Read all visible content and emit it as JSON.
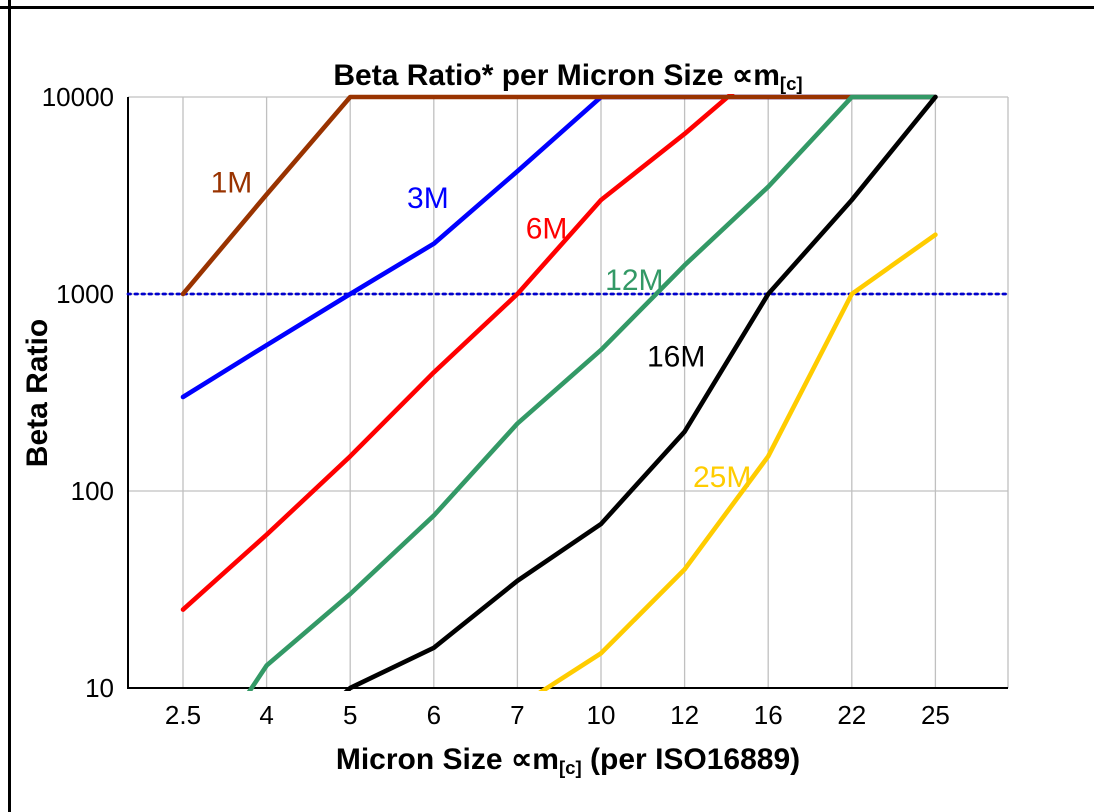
{
  "page": {
    "background": "#FFFFFF",
    "frame_border_color": "#000000"
  },
  "chart_data": {
    "type": "line",
    "title": "Beta Ratio* per Micron Size ∝m[c]",
    "title_parts": {
      "pre": "Beta Ratio* per Micron Size ∝m",
      "sub": "[c]"
    },
    "xlabel": "Micron Size ∝m[c] (per ISO16889)",
    "xlabel_parts": {
      "pre": "Micron Size ∝m",
      "sub": "[c]",
      "post": " (per ISO16889)"
    },
    "ylabel": "Beta Ratio",
    "x_scale": "categorical",
    "y_scale": "log",
    "ylim": [
      10,
      10000
    ],
    "categories": [
      "2.5",
      "4",
      "5",
      "6",
      "7",
      "10",
      "12",
      "16",
      "22",
      "25"
    ],
    "y_ticks": [
      "10",
      "100",
      "1000",
      "10000"
    ],
    "grid": {
      "show": true,
      "color": "#C0C0C0"
    },
    "axis_color": "#000000",
    "reference_line": {
      "y": 1000,
      "color": "#0000CC",
      "style": "dotted"
    },
    "draw_order": [
      "3M",
      "6M",
      "1M",
      "12M",
      "16M",
      "25M"
    ],
    "series": [
      {
        "name": "1M",
        "color": "#993300",
        "values": [
          1000,
          3200,
          10000,
          10000,
          10000,
          10000,
          10000,
          10000,
          10000,
          10000
        ],
        "label": {
          "text": "1M",
          "x": 0.33,
          "y": 3600
        }
      },
      {
        "name": "3M",
        "color": "#0000FF",
        "values": [
          300,
          550,
          1000,
          1800,
          4200,
          10000,
          10000,
          10000,
          10000,
          10000
        ],
        "label": {
          "text": "3M",
          "x": 2.68,
          "y": 3000
        }
      },
      {
        "name": "6M",
        "color": "#FF0000",
        "values": [
          25,
          60,
          150,
          400,
          1000,
          3000,
          6500,
          15000,
          null,
          null
        ],
        "label": {
          "text": "6M",
          "x": 4.1,
          "y": 2100
        }
      },
      {
        "name": "12M",
        "color": "#339966",
        "values": [
          3,
          13,
          30,
          75,
          220,
          520,
          1400,
          3500,
          10000,
          10000
        ],
        "label": {
          "text": "12M",
          "x": 5.05,
          "y": 1150
        }
      },
      {
        "name": "16M",
        "color": "#000000",
        "values": [
          null,
          4,
          10,
          16,
          35,
          68,
          200,
          1000,
          3000,
          10000
        ],
        "label": {
          "text": "16M",
          "x": 5.55,
          "y": 470
        }
      },
      {
        "name": "25M",
        "color": "#FFCC00",
        "values": [
          null,
          null,
          null,
          null,
          8,
          15,
          40,
          150,
          1000,
          2000
        ],
        "label": {
          "text": "25M",
          "x": 6.1,
          "y": 115
        }
      }
    ]
  }
}
